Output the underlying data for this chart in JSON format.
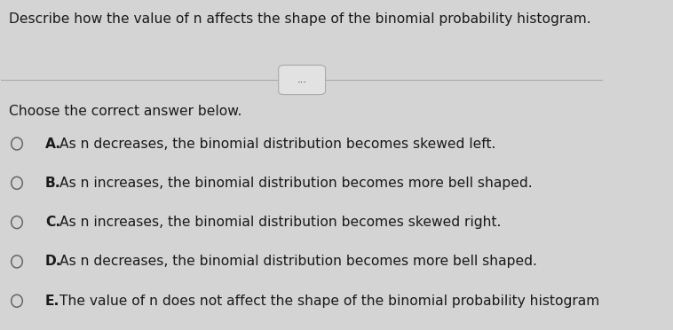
{
  "question": "Describe how the value of n affects the shape of the binomial probability histogram.",
  "divider_label": "...",
  "sub_heading": "Choose the correct answer below.",
  "options": [
    {
      "letter": "A",
      "text": "As n decreases, the binomial distribution becomes skewed left."
    },
    {
      "letter": "B",
      "text": "As n increases, the binomial distribution becomes more bell shaped."
    },
    {
      "letter": "C",
      "text": "As n increases, the binomial distribution becomes skewed right."
    },
    {
      "letter": "D",
      "text": "As n decreases, the binomial distribution becomes more bell shaped."
    },
    {
      "letter": "E",
      "text": "The value of n does not affect the shape of the binomial probability histogram"
    }
  ],
  "bg_color": "#d4d4d4",
  "text_color": "#1a1a1a",
  "circle_edge_color": "#666666",
  "question_fontsize": 11.2,
  "subheading_fontsize": 11.2,
  "option_fontsize": 11.2,
  "line_color": "#aaaaaa",
  "divider_box_color": "#e2e2e2",
  "divider_box_edge": "#aaaaaa"
}
